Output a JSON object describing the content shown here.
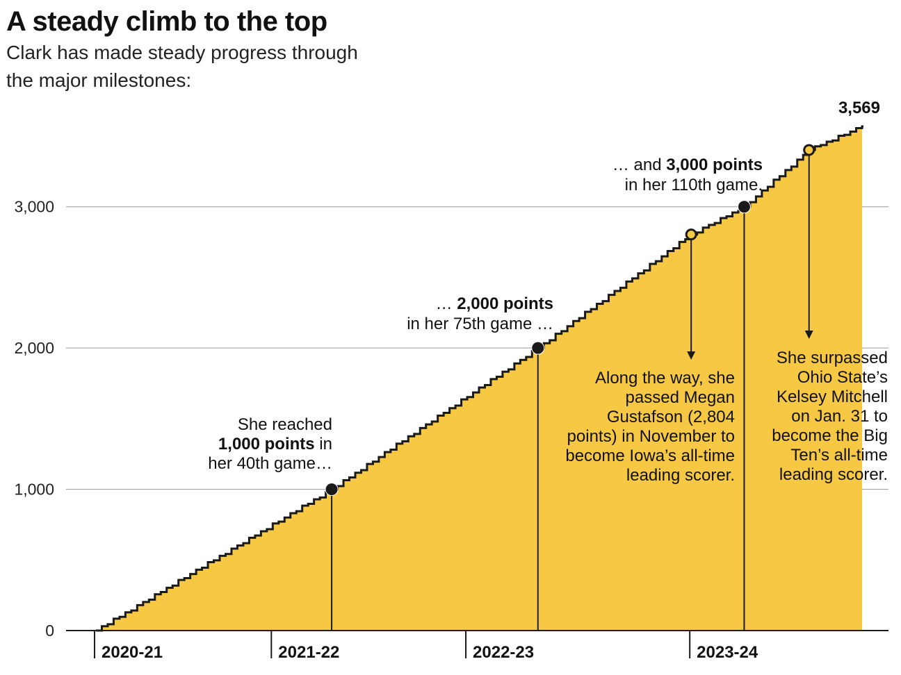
{
  "title": "A steady climb to the top",
  "subtitle_lines": [
    "Clark has made steady progress through",
    "the major milestones:"
  ],
  "colors": {
    "fill": "#f6c844",
    "line": "#1a1a1a",
    "grid": "#999999",
    "marker_dark": "#1a1a1a",
    "marker_light": "#f6c844"
  },
  "chart_data": {
    "type": "area",
    "style": "step",
    "title": "A steady climb to the top",
    "xlabel": "",
    "ylabel": "",
    "ylim": [
      0,
      3569
    ],
    "yticks": [
      0,
      1000,
      2000,
      3000
    ],
    "ytick_labels": [
      "0",
      "1,000",
      "2,000",
      "3,000"
    ],
    "games": 130,
    "final_value": 3569,
    "final_label": "3,569",
    "seasons": [
      {
        "label": "2020-21",
        "start_game": 1
      },
      {
        "label": "2021-22",
        "start_game": 31
      },
      {
        "label": "2022-23",
        "start_game": 64
      },
      {
        "label": "2023-24",
        "start_game": 102
      }
    ],
    "milestone_points": [
      {
        "game": 0,
        "points": 0
      },
      {
        "game": 40,
        "points": 1000
      },
      {
        "game": 75,
        "points": 2000
      },
      {
        "game": 101,
        "points": 2804
      },
      {
        "game": 110,
        "points": 3000
      },
      {
        "game": 121,
        "points": 3402
      },
      {
        "game": 130,
        "points": 3569
      }
    ],
    "markers": [
      {
        "id": "m1000",
        "game": 40,
        "points": 1000,
        "style": "dark"
      },
      {
        "id": "m2000",
        "game": 75,
        "points": 2000,
        "style": "dark"
      },
      {
        "id": "mgust",
        "game": 101,
        "points": 2804,
        "style": "light"
      },
      {
        "id": "m3000",
        "game": 110,
        "points": 3000,
        "style": "dark"
      },
      {
        "id": "mmitch",
        "game": 121,
        "points": 3402,
        "style": "light"
      }
    ]
  },
  "annotations": {
    "a1000": [
      {
        "parts": [
          {
            "t": "She reached",
            "b": false
          }
        ]
      },
      {
        "parts": [
          {
            "t": "1,000 points",
            "b": true
          },
          {
            "t": " in",
            "b": false
          }
        ]
      },
      {
        "parts": [
          {
            "t": "her 40th game…",
            "b": false
          }
        ]
      }
    ],
    "a2000": [
      {
        "parts": [
          {
            "t": "… ",
            "b": false
          },
          {
            "t": "2,000 points",
            "b": true
          }
        ]
      },
      {
        "parts": [
          {
            "t": "in her 75th game …",
            "b": false
          }
        ]
      }
    ],
    "a3000": [
      {
        "parts": [
          {
            "t": "… and ",
            "b": false
          },
          {
            "t": "3,000 points",
            "b": true
          }
        ]
      },
      {
        "parts": [
          {
            "t": "in her 110th game.",
            "b": false
          }
        ]
      }
    ],
    "agust": [
      {
        "parts": [
          {
            "t": "Along the way, she",
            "b": false
          }
        ]
      },
      {
        "parts": [
          {
            "t": "passed Megan",
            "b": false
          }
        ]
      },
      {
        "parts": [
          {
            "t": "Gustafson (2,804",
            "b": false
          }
        ]
      },
      {
        "parts": [
          {
            "t": "points) in November to",
            "b": false
          }
        ]
      },
      {
        "parts": [
          {
            "t": "become Iowa’s all-time",
            "b": false
          }
        ]
      },
      {
        "parts": [
          {
            "t": "leading scorer.",
            "b": false
          }
        ]
      }
    ],
    "amitch": [
      {
        "parts": [
          {
            "t": "She surpassed",
            "b": false
          }
        ]
      },
      {
        "parts": [
          {
            "t": "Ohio State’s",
            "b": false
          }
        ]
      },
      {
        "parts": [
          {
            "t": "Kelsey Mitchell",
            "b": false
          }
        ]
      },
      {
        "parts": [
          {
            "t": "on Jan. 31 to",
            "b": false
          }
        ]
      },
      {
        "parts": [
          {
            "t": "become the Big",
            "b": false
          }
        ]
      },
      {
        "parts": [
          {
            "t": "Ten’s all-time",
            "b": false
          }
        ]
      },
      {
        "parts": [
          {
            "t": "leading scorer.",
            "b": false
          }
        ]
      }
    ]
  }
}
